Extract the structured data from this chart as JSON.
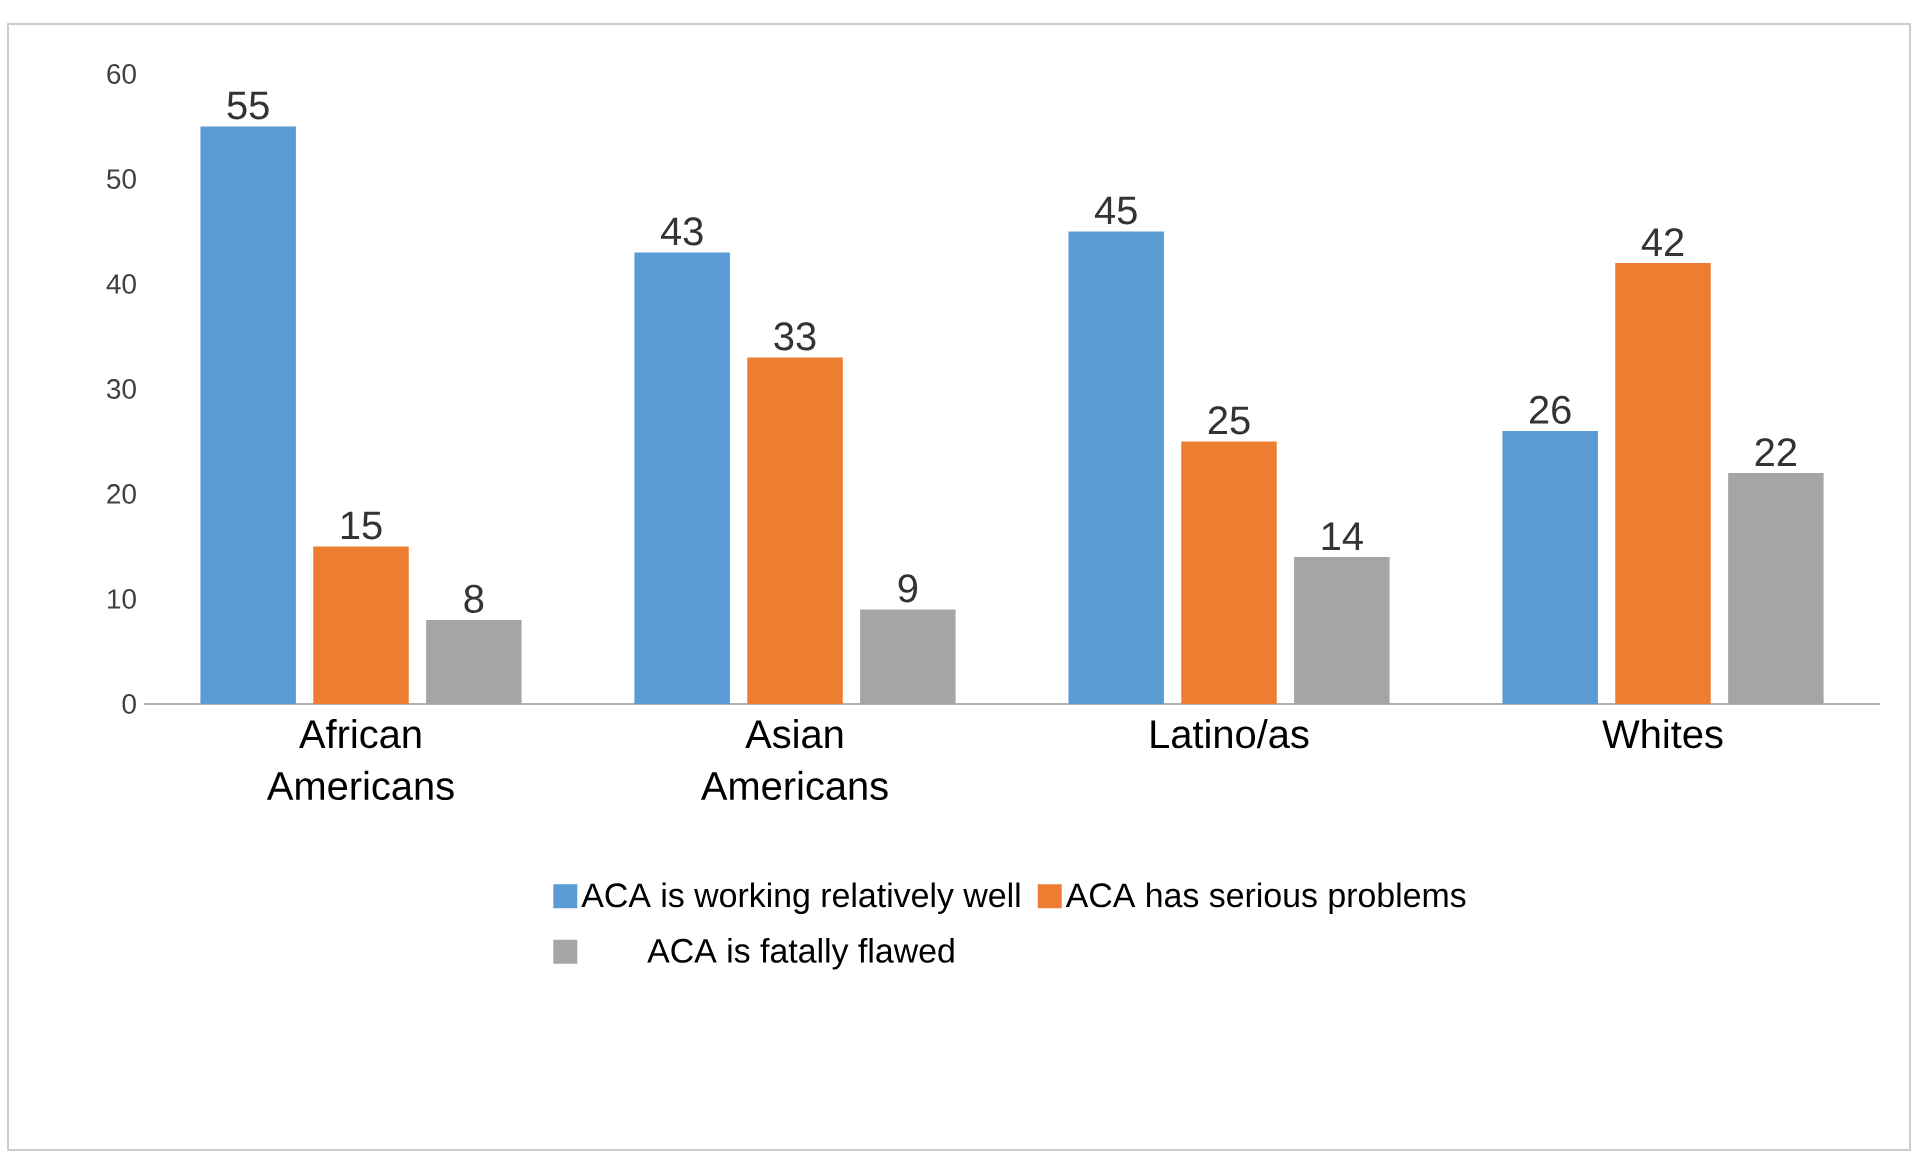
{
  "chart_data": {
    "type": "bar",
    "categories": [
      "African Americans",
      "Asian Americans",
      "Latino/as",
      "Whites"
    ],
    "series": [
      {
        "name": "ACA is working relatively well",
        "color": "#5b9bd5",
        "values": [
          55,
          43,
          45,
          26
        ]
      },
      {
        "name": "ACA has serious problems",
        "color": "#ed7d31",
        "values": [
          15,
          33,
          25,
          42
        ]
      },
      {
        "name": "ACA is fatally flawed",
        "color": "#a5a5a5",
        "values": [
          8,
          9,
          14,
          22
        ]
      }
    ],
    "ylim": [
      0,
      60
    ],
    "yticks": [
      0,
      10,
      20,
      30,
      40,
      50,
      60
    ],
    "data_labels": true,
    "grid": false,
    "legend": "bottom"
  }
}
